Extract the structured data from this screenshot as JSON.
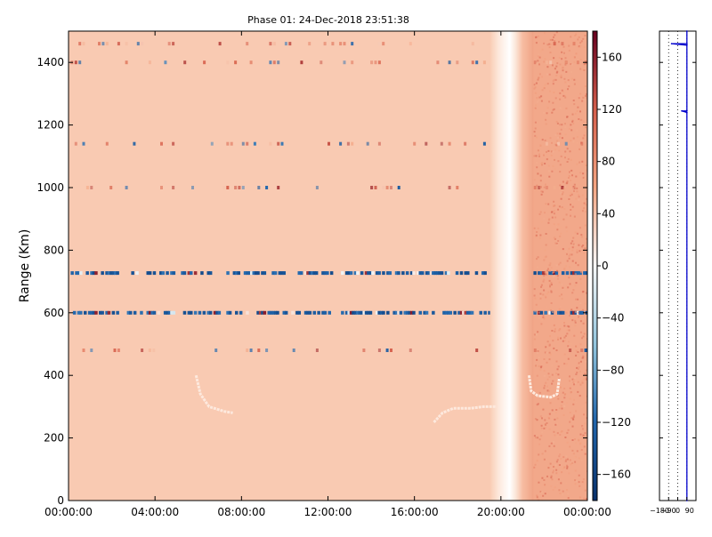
{
  "chart_data": [
    {
      "type": "heatmap",
      "title": "Phase 01: 24-Dec-2018 23:51:38",
      "ylabel": "Range (Km)",
      "xlabel": "",
      "x_ticks": [
        "00:00:00",
        "04:00:00",
        "08:00:00",
        "12:00:00",
        "16:00:00",
        "20:00:00",
        "00:00:00"
      ],
      "x_range_hours": [
        0,
        24
      ],
      "y_ticks": [
        0,
        200,
        400,
        600,
        800,
        1000,
        1200,
        1400
      ],
      "ylim": [
        0,
        1500
      ],
      "grid": false,
      "colormap": "RdBu_r",
      "background_phase": 60,
      "stripe_bands": [
        {
          "range_km": 1460,
          "phase_values": [
            -160,
            160
          ],
          "description": "sparse"
        },
        {
          "range_km": 1400,
          "phase_values": [
            -160,
            160
          ],
          "description": "sparse"
        },
        {
          "range_km": 1140,
          "phase_values": [
            -160,
            160
          ],
          "description": "sparse"
        },
        {
          "range_km": 1000,
          "phase_values": [
            -160,
            160
          ],
          "description": "sparse"
        },
        {
          "range_km": 727,
          "phase_values": [
            -160,
            160
          ],
          "description": "dense"
        },
        {
          "range_km": 600,
          "phase_values": [
            -160,
            160
          ],
          "description": "dense"
        },
        {
          "range_km": 480,
          "phase_values": [
            -160,
            160
          ],
          "description": "sparse"
        }
      ],
      "features": [
        {
          "name": "clutter-curve-morning",
          "points": [
            [
              5.9,
              400
            ],
            [
              6.1,
              340
            ],
            [
              6.5,
              300
            ],
            [
              7.2,
              285
            ],
            [
              7.6,
              280
            ]
          ]
        },
        {
          "name": "clutter-curve-evening",
          "points": [
            [
              16.9,
              250
            ],
            [
              17.3,
              280
            ],
            [
              17.8,
              295
            ],
            [
              18.6,
              295
            ],
            [
              19.2,
              300
            ],
            [
              19.8,
              300
            ]
          ]
        },
        {
          "name": "clutter-curve-night",
          "points": [
            [
              21.3,
              400
            ],
            [
              21.4,
              350
            ],
            [
              21.7,
              335
            ],
            [
              22.3,
              330
            ],
            [
              22.6,
              340
            ],
            [
              22.7,
              390
            ]
          ]
        },
        {
          "name": "sunset-band",
          "x_hours": [
            19.5,
            21.5
          ],
          "phase_min": 0
        }
      ]
    },
    {
      "type": "colorbar",
      "ticks": [
        160,
        120,
        80,
        40,
        0,
        -40,
        -80,
        -120,
        -160
      ],
      "range": [
        -180,
        180
      ]
    },
    {
      "type": "line",
      "xlim": [
        -180,
        180
      ],
      "x_ticks": [
        "−180",
        "−90",
        "0",
        "90"
      ],
      "ylim": [
        0,
        1500
      ],
      "series": [
        {
          "color": "#0000cc",
          "points": [
            [
              90,
              1500
            ],
            [
              90,
              1460
            ],
            [
              -60,
              1460
            ],
            [
              90,
              1455
            ],
            [
              90,
              1245
            ],
            [
              40,
              1245
            ],
            [
              90,
              1240
            ],
            [
              90,
              0
            ]
          ]
        }
      ]
    }
  ]
}
